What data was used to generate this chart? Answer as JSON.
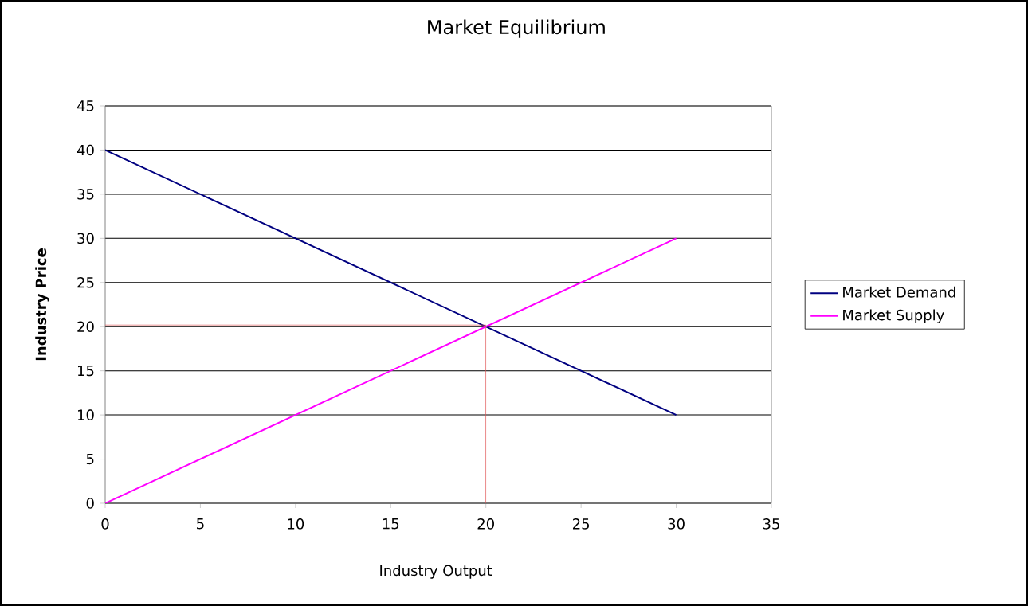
{
  "chart_data": {
    "type": "line",
    "title": "Market Equilibrium",
    "xlabel": "Industry Output",
    "ylabel": "Industry Price",
    "xlim": [
      0,
      35
    ],
    "ylim": [
      0,
      45
    ],
    "xticks": [
      0,
      5,
      10,
      15,
      20,
      25,
      30,
      35
    ],
    "yticks": [
      0,
      5,
      10,
      15,
      20,
      25,
      30,
      35,
      40,
      45
    ],
    "grid": "y",
    "legend": "right",
    "series": [
      {
        "name": "Market Demand",
        "color": "#000080",
        "x": [
          0,
          30
        ],
        "values": [
          40,
          10
        ]
      },
      {
        "name": "Market Supply",
        "color": "#ff00ff",
        "x": [
          0,
          30
        ],
        "values": [
          0,
          30
        ]
      },
      {
        "color": "#e05050",
        "x": [
          0,
          20
        ],
        "values": [
          20.2,
          20.2
        ]
      },
      {
        "color": "#e05050",
        "x": [
          20,
          20
        ],
        "values": [
          0,
          20.2
        ]
      }
    ]
  }
}
